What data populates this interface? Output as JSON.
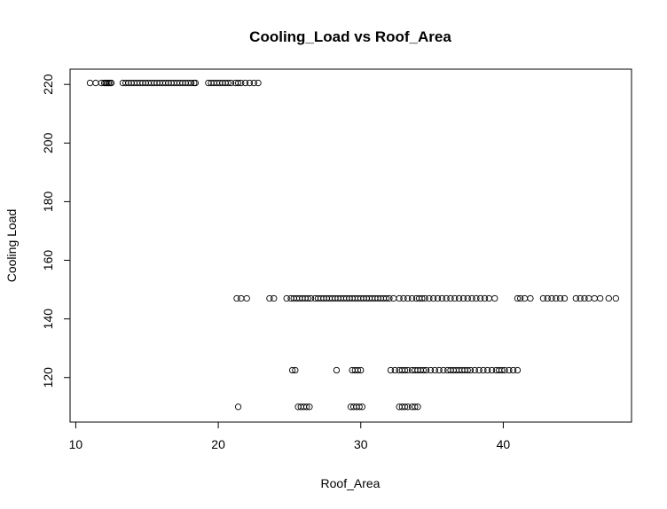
{
  "chart_data": {
    "type": "scatter",
    "title": "Cooling_Load vs Roof_Area",
    "xlabel": "Roof_Area",
    "ylabel": "Cooling Load",
    "xlim": [
      9.6,
      49.0
    ],
    "ylim": [
      104.8,
      225.2
    ],
    "x_ticks": [
      10,
      20,
      30,
      40
    ],
    "y_ticks": [
      120,
      140,
      160,
      180,
      200,
      220
    ],
    "grid": false,
    "legend": "none",
    "bands": [
      {
        "y": 220.5,
        "x": [
          11.0,
          11.4,
          11.8,
          12.0,
          12.1,
          12.2,
          12.3,
          12.4,
          12.5,
          13.3,
          13.5,
          13.7,
          13.9,
          14.1,
          14.3,
          14.5,
          14.7,
          14.9,
          15.1,
          15.3,
          15.5,
          15.7,
          15.9,
          16.1,
          16.3,
          16.5,
          16.7,
          16.9,
          17.1,
          17.3,
          17.5,
          17.7,
          17.9,
          18.1,
          18.3,
          18.4,
          19.3,
          19.5,
          19.7,
          19.9,
          20.1,
          20.3,
          20.5,
          20.7,
          20.9,
          21.2,
          21.4,
          21.6,
          21.9,
          22.2,
          22.5,
          22.8
        ]
      },
      {
        "y": 147.0,
        "x": [
          21.3,
          21.6,
          22.0,
          23.6,
          23.9,
          24.8,
          25.1,
          25.3,
          25.5,
          25.7,
          25.9,
          26.1,
          26.3,
          26.5,
          26.8,
          27.0,
          27.2,
          27.4,
          27.6,
          27.8,
          28.0,
          28.2,
          28.4,
          28.6,
          28.8,
          29.0,
          29.2,
          29.4,
          29.6,
          29.8,
          30.0,
          30.2,
          30.4,
          30.6,
          30.8,
          31.0,
          31.2,
          31.4,
          31.6,
          31.8,
          32.0,
          32.3,
          32.7,
          33.0,
          33.3,
          33.6,
          33.9,
          34.1,
          34.3,
          34.5,
          34.8,
          35.1,
          35.4,
          35.7,
          36.0,
          36.3,
          36.6,
          36.9,
          37.2,
          37.5,
          37.8,
          38.1,
          38.4,
          38.7,
          39.0,
          39.4,
          41.0,
          41.2,
          41.5,
          41.9,
          42.8,
          43.1,
          43.4,
          43.7,
          44.0,
          44.3,
          45.1,
          45.4,
          45.7,
          46.0,
          46.4,
          46.8,
          47.4,
          47.9
        ]
      },
      {
        "y": 122.5,
        "x": [
          25.2,
          25.4,
          28.3,
          29.4,
          29.6,
          29.8,
          30.0,
          32.1,
          32.4,
          32.7,
          32.9,
          33.1,
          33.3,
          33.6,
          33.8,
          34.0,
          34.2,
          34.4,
          34.6,
          34.9,
          35.2,
          35.5,
          35.8,
          36.1,
          36.3,
          36.5,
          36.7,
          36.9,
          37.1,
          37.3,
          37.5,
          37.7,
          38.0,
          38.3,
          38.6,
          38.9,
          39.2,
          39.5,
          39.7,
          39.9,
          40.1,
          40.4,
          40.7,
          41.0
        ]
      },
      {
        "y": 110.0,
        "x": [
          21.4,
          25.6,
          25.8,
          26.0,
          26.2,
          26.4,
          29.3,
          29.5,
          29.7,
          29.9,
          30.1,
          32.7,
          32.9,
          33.1,
          33.3,
          33.6,
          33.8,
          34.0
        ]
      }
    ]
  }
}
